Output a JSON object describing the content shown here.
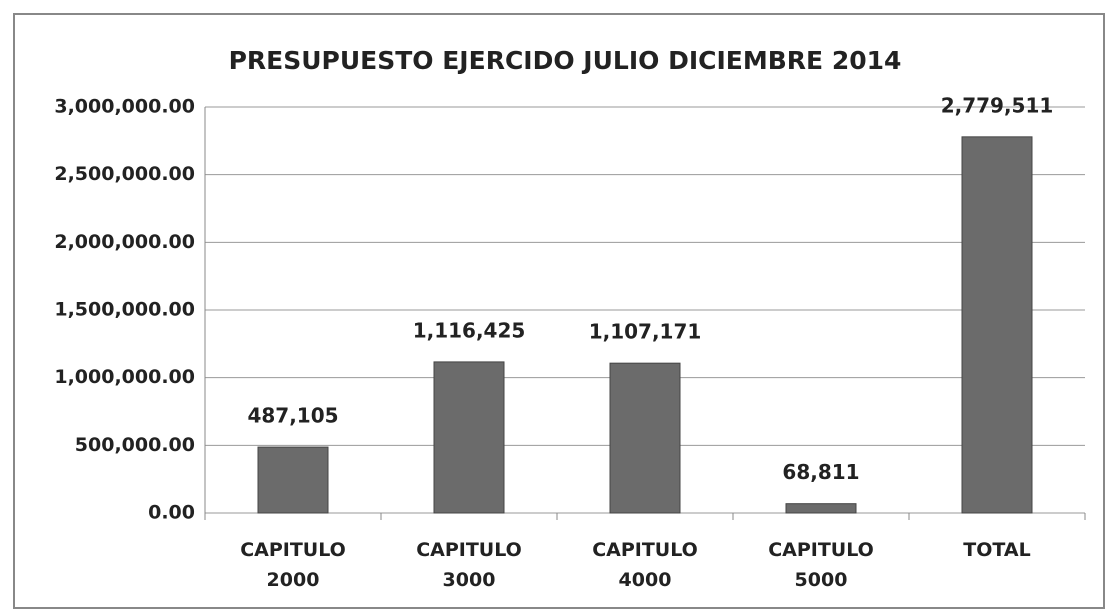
{
  "chart_data": {
    "type": "bar",
    "title": "PRESUPUESTO EJERCIDO JULIO DICIEMBRE 2014",
    "categories": [
      "CAPITULO 2000",
      "CAPITULO 3000",
      "CAPITULO 4000",
      "CAPITULO 5000",
      "TOTAL"
    ],
    "values": [
      487105,
      1116425,
      1107171,
      68811,
      2779511
    ],
    "value_labels": [
      "487,105",
      "1,116,425",
      "1,107,171",
      "68,811",
      "2,779,511"
    ],
    "color": "#6b6b6b",
    "ylim": [
      0,
      3000000
    ],
    "yticks": [
      {
        "value": 0,
        "label": "0.00"
      },
      {
        "value": 500000,
        "label": "500,000.00"
      },
      {
        "value": 1000000,
        "label": "1,000,000.00"
      },
      {
        "value": 1500000,
        "label": "1,500,000.00"
      },
      {
        "value": 2000000,
        "label": "2,000,000.00"
      },
      {
        "value": 2500000,
        "label": "2,500,000.00"
      },
      {
        "value": 3000000,
        "label": "3,000,000.00"
      }
    ],
    "grid": true
  }
}
